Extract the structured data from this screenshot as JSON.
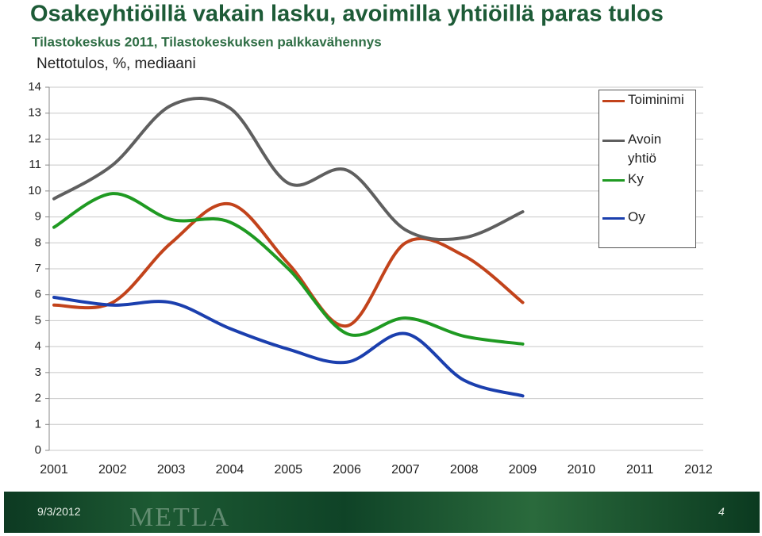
{
  "chart_data": {
    "type": "line",
    "title": "Osakeyhtiöillä vakain lasku, avoimilla yhtiöillä paras tulos",
    "subtitle": "Tilastokeskus 2011, Tilastokeskuksen palkkavähennys",
    "y_label": "Nettotulos, %, mediaani",
    "categories": [
      "2001",
      "2002",
      "2003",
      "2004",
      "2005",
      "2006",
      "2007",
      "2008",
      "2009",
      "2010",
      "2011",
      "2012"
    ],
    "series": [
      {
        "name": "Toiminimi",
        "color": "#c2431b",
        "values": [
          5.6,
          5.7,
          8.0,
          9.5,
          7.2,
          4.8,
          8.0,
          7.5,
          5.7,
          null,
          null,
          null
        ]
      },
      {
        "name": "Avoin yhtiö",
        "color": "#5f5f5f",
        "values": [
          9.7,
          11.0,
          13.3,
          13.2,
          10.3,
          10.8,
          8.5,
          8.2,
          9.2,
          null,
          null,
          null
        ]
      },
      {
        "name": "Ky",
        "color": "#1f9a22",
        "values": [
          8.6,
          9.9,
          8.9,
          8.8,
          7.0,
          4.5,
          5.1,
          4.4,
          4.1,
          null,
          null,
          null
        ]
      },
      {
        "name": "Oy",
        "color": "#1b3fae",
        "values": [
          5.9,
          5.6,
          5.7,
          4.7,
          3.9,
          3.4,
          4.5,
          2.7,
          2.1,
          null,
          null,
          null
        ]
      }
    ],
    "ylim": [
      0,
      14
    ],
    "yticks": [
      0,
      1,
      2,
      3,
      4,
      5,
      6,
      7,
      8,
      9,
      10,
      11,
      12,
      13,
      14
    ],
    "grid": true,
    "smooth": true,
    "legend": "right"
  },
  "footer": {
    "date": "9/3/2012",
    "logo": "METLA",
    "page": "4"
  }
}
